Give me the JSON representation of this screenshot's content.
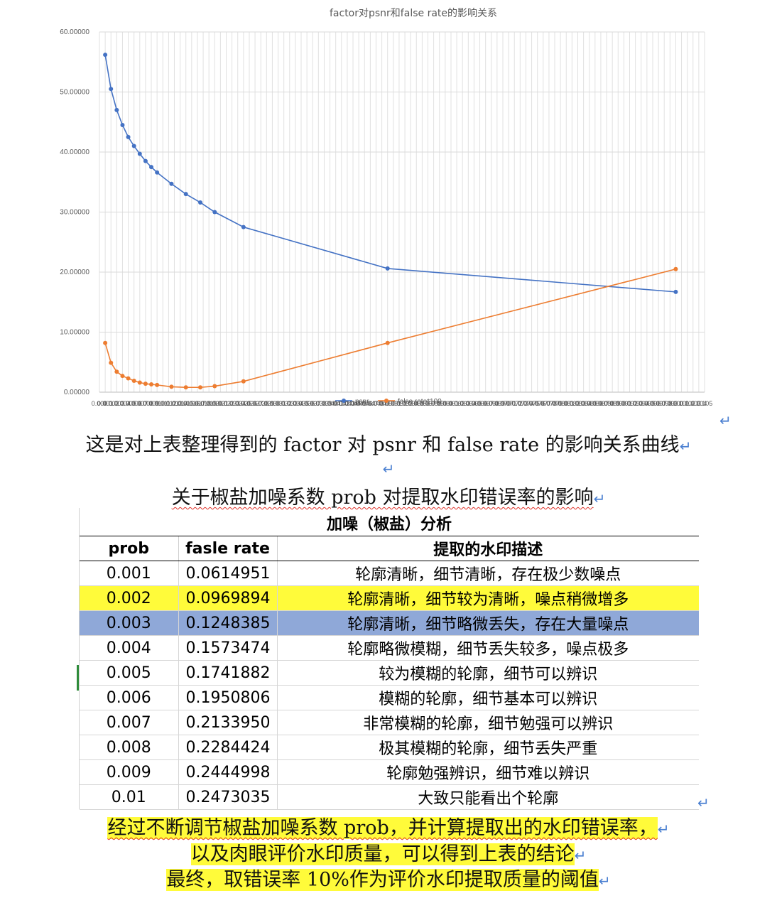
{
  "chart_data": {
    "type": "line",
    "title": "factor对psnr和false rate的影响关系",
    "ylim": [
      0,
      60
    ],
    "y_ticks": [
      "0.00000",
      "10.00000",
      "20.00000",
      "30.00000",
      "40.00000",
      "50.00000",
      "60.00000"
    ],
    "xlim": [
      0.0,
      0.105
    ],
    "x": [
      0.001,
      0.002,
      0.003,
      0.004,
      0.005,
      0.006,
      0.007,
      0.008,
      0.009,
      0.01,
      0.0125,
      0.015,
      0.0175,
      0.02,
      0.025,
      0.05,
      0.1
    ],
    "series": [
      {
        "name": "psnr",
        "color": "#4472c4",
        "values": [
          56.2,
          50.5,
          47.0,
          44.5,
          42.5,
          41.0,
          39.7,
          38.5,
          37.5,
          36.6,
          34.7,
          33.0,
          31.6,
          30.0,
          27.5,
          20.6,
          16.7
        ]
      },
      {
        "name": "false rate*100",
        "color": "#ed7d31",
        "values": [
          8.2,
          4.9,
          3.4,
          2.7,
          2.3,
          1.9,
          1.6,
          1.4,
          1.3,
          1.2,
          0.9,
          0.8,
          0.8,
          1.0,
          1.8,
          8.2,
          20.5
        ]
      }
    ],
    "grid": true,
    "legend_position": "bottom"
  },
  "texts": {
    "caption1": "这是对上表整理得到的 factor 对 psnr 和 false rate 的影响关系曲线",
    "subtitle": "关于椒盐加噪系数 prob 对提取水印错误率的影响",
    "conclusion1": "经过不断调节椒盐加噪系数 prob，并计算提取出的水印错误率，",
    "conclusion2": "以及肉眼评价水印质量，可以得到上表的结论",
    "conclusion3": "最终，取错误率 10%作为评价水印提取质量的阈值"
  },
  "table": {
    "title": "加噪（椒盐）分析",
    "headers": [
      "prob",
      "fasle rate",
      "提取的水印描述"
    ],
    "rows": [
      {
        "prob": "0.001",
        "rate": "0.0614951",
        "desc": "轮廓清晰，细节清晰，存在极少数噪点",
        "highlight": ""
      },
      {
        "prob": "0.002",
        "rate": "0.0969894",
        "desc": "轮廓清晰，细节较为清晰，噪点稍微增多",
        "highlight": "yellow"
      },
      {
        "prob": "0.003",
        "rate": "0.1248385",
        "desc": "轮廓清晰，细节略微丢失，存在大量噪点",
        "highlight": "blue"
      },
      {
        "prob": "0.004",
        "rate": "0.1573474",
        "desc": "轮廓略微模糊，细节丢失较多，噪点极多",
        "highlight": ""
      },
      {
        "prob": "0.005",
        "rate": "0.1741882",
        "desc": "较为模糊的轮廓，细节可以辨识",
        "highlight": ""
      },
      {
        "prob": "0.006",
        "rate": "0.1950806",
        "desc": "模糊的轮廓，细节基本可以辨识",
        "highlight": ""
      },
      {
        "prob": "0.007",
        "rate": "0.2133950",
        "desc": "非常模糊的轮廓，细节勉强可以辨识",
        "highlight": ""
      },
      {
        "prob": "0.008",
        "rate": "0.2284424",
        "desc": "极其模糊的轮廓，细节丢失严重",
        "highlight": ""
      },
      {
        "prob": "0.009",
        "rate": "0.2444998",
        "desc": "轮廓勉强辨识，细节难以辨识",
        "highlight": ""
      },
      {
        "prob": "0.01",
        "rate": "0.2473035",
        "desc": "大致只能看出个轮廓",
        "highlight": ""
      }
    ]
  },
  "marks": {
    "return": "↵"
  }
}
